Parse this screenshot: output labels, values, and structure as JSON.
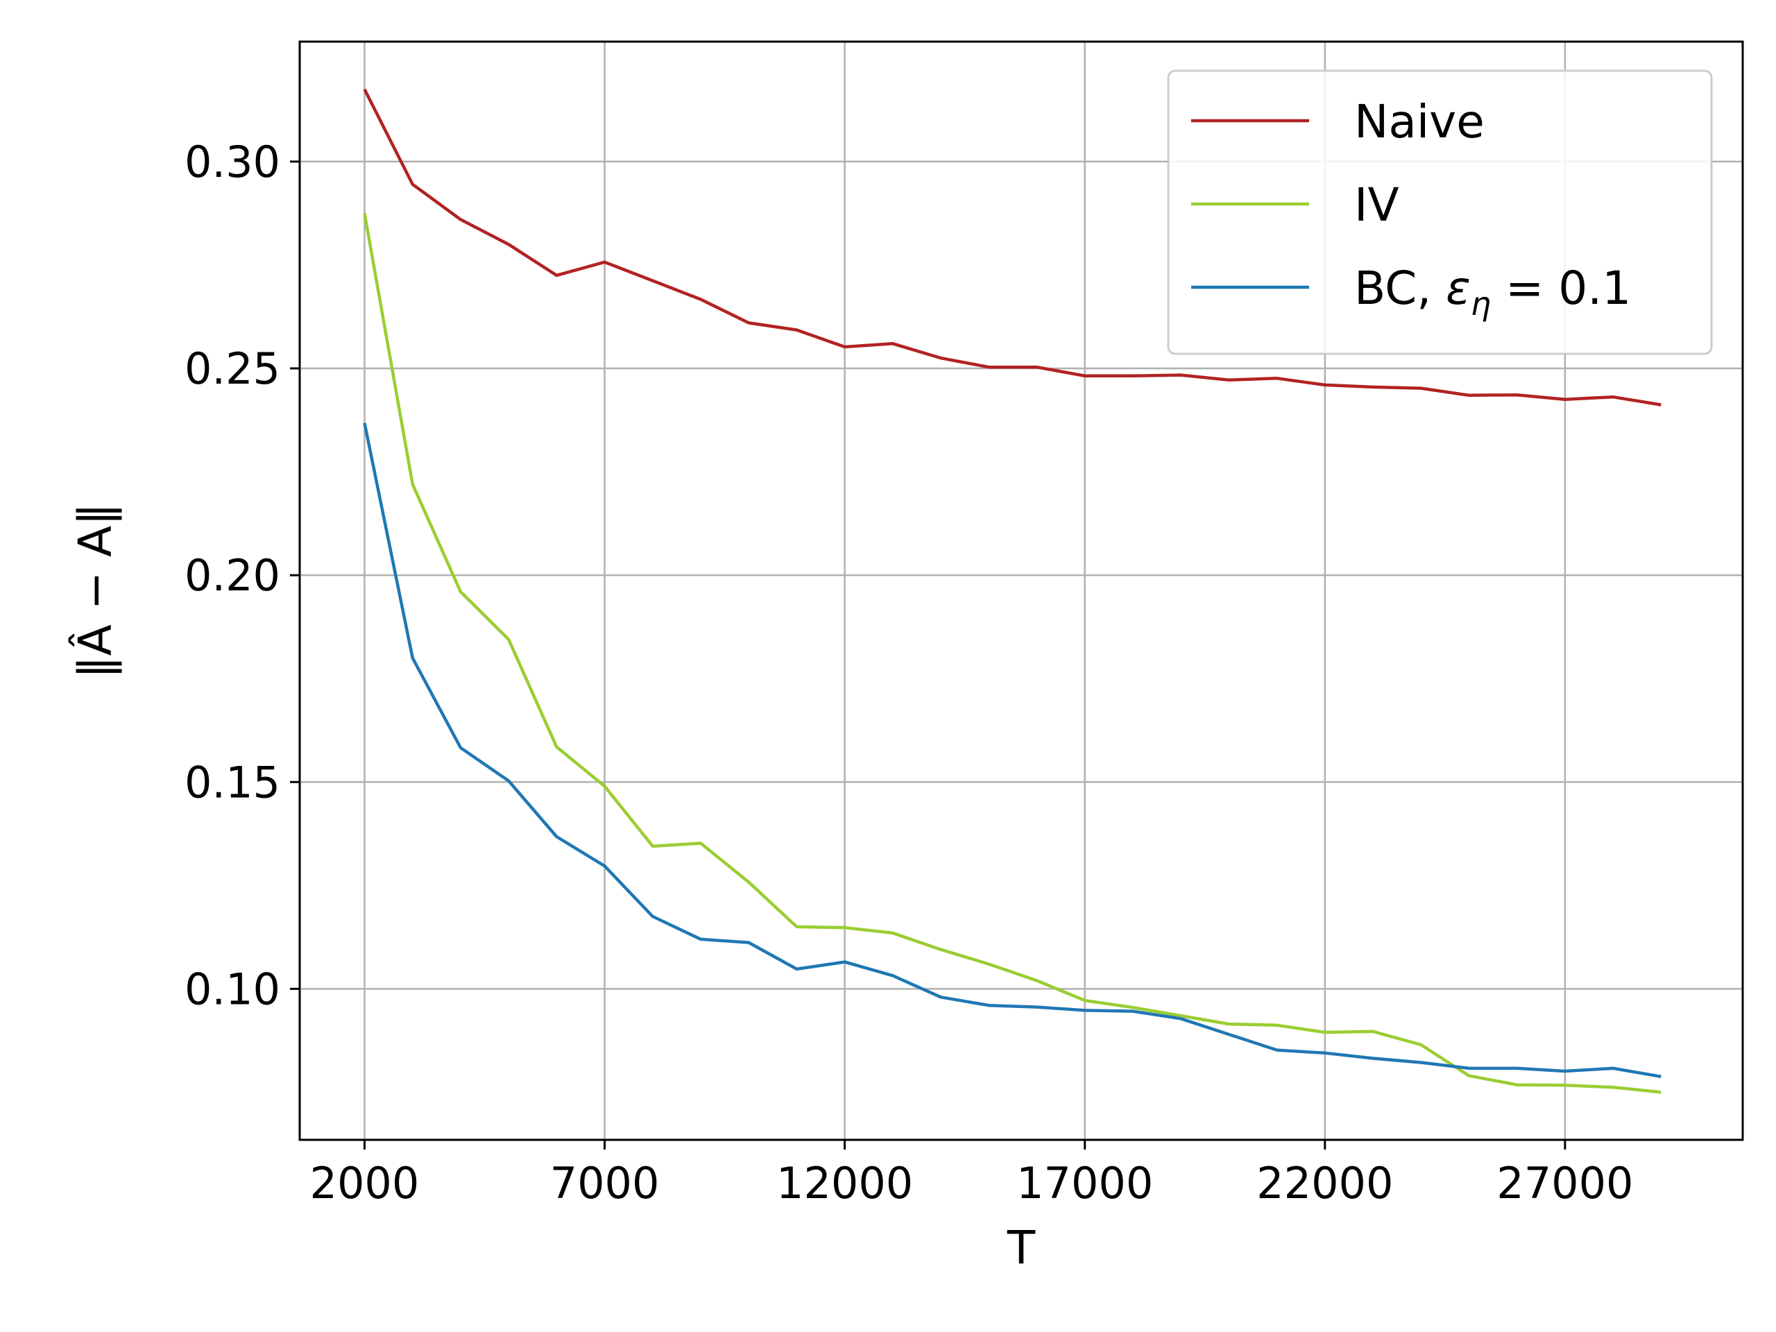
{
  "chart_data": {
    "type": "line",
    "xlabel": "T",
    "ylabel": "‖Â − A‖",
    "xlim": [
      650,
      30700
    ],
    "ylim": [
      0.0635,
      0.329
    ],
    "xticks": [
      2000,
      7000,
      12000,
      17000,
      22000,
      27000
    ],
    "xtick_labels": [
      "2000",
      "7000",
      "12000",
      "17000",
      "22000",
      "27000"
    ],
    "yticks": [
      0.1,
      0.15,
      0.2,
      0.25,
      0.3
    ],
    "ytick_labels": [
      "0.10",
      "0.15",
      "0.20",
      "0.25",
      "0.30"
    ],
    "grid": true,
    "legend_position": "top-right",
    "x": [
      2000,
      3000,
      4000,
      5000,
      6000,
      7000,
      8000,
      9000,
      10000,
      11000,
      12000,
      13000,
      14000,
      15000,
      16000,
      17000,
      18000,
      19000,
      20000,
      21000,
      22000,
      23000,
      24000,
      25000,
      26000,
      27000,
      28000,
      29000
    ],
    "series": [
      {
        "name": "Naive",
        "color": "#b22222",
        "values": [
          0.3175,
          0.2945,
          0.286,
          0.28,
          0.2725,
          0.2757,
          0.2712,
          0.2667,
          0.261,
          0.2593,
          0.2552,
          0.256,
          0.2525,
          0.2503,
          0.2503,
          0.2482,
          0.2482,
          0.2484,
          0.2472,
          0.2476,
          0.246,
          0.2455,
          0.2452,
          0.2435,
          0.2436,
          0.2425,
          0.2431,
          0.2412
        ]
      },
      {
        "name": "IV",
        "color": "#9acd32",
        "values": [
          0.2875,
          0.222,
          0.196,
          0.1845,
          0.1585,
          0.149,
          0.1345,
          0.1352,
          0.1258,
          0.115,
          0.1148,
          0.1135,
          0.1095,
          0.106,
          0.102,
          0.0972,
          0.0955,
          0.0935,
          0.0915,
          0.0912,
          0.0895,
          0.0897,
          0.0865,
          0.079,
          0.0768,
          0.0767,
          0.0762,
          0.075
        ]
      },
      {
        "name": "BC, ε_η = 0.1",
        "legend_text_main": "BC, ",
        "legend_text_eps": "ε",
        "legend_text_sub": "η",
        "legend_text_tail": " = 0.1",
        "color": "#1f77b4",
        "values": [
          0.2368,
          0.18,
          0.1583,
          0.1503,
          0.1368,
          0.1297,
          0.1175,
          0.112,
          0.1112,
          0.1048,
          0.1065,
          0.1032,
          0.098,
          0.096,
          0.0956,
          0.0948,
          0.0946,
          0.0928,
          0.089,
          0.0852,
          0.0845,
          0.0832,
          0.0822,
          0.0808,
          0.0808,
          0.0801,
          0.0808,
          0.0788
        ]
      }
    ]
  }
}
